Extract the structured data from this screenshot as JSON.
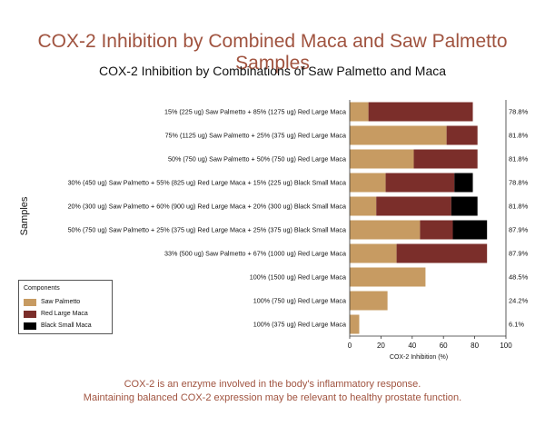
{
  "header": {
    "main_title": "COX-2 Inhibition by Combined Maca and Saw Palmetto Samples"
  },
  "footer": {
    "line1": "COX-2 is an enzyme involved in the body's inflammatory response.",
    "line2": "Maintaining balanced COX-2 expression may be relevant to healthy prostate function."
  },
  "legend": {
    "title": "Components",
    "items": [
      {
        "label": "Saw Palmetto",
        "color": "#c79b62"
      },
      {
        "label": "Red Large Maca",
        "color": "#7b2e2a"
      },
      {
        "label": "Black Small Maca",
        "color": "#000000"
      }
    ]
  },
  "chart_data": {
    "type": "bar",
    "orientation": "horizontal",
    "stacked": true,
    "title": "COX-2 Inhibition by Combinations of Saw Palmetto and Maca",
    "xlabel": "COX-2 Inhibition (%)",
    "ylabel": "Samples",
    "xlim": [
      0,
      100
    ],
    "xticks": [
      "0",
      "20",
      "40",
      "60",
      "80",
      "100"
    ],
    "grid": false,
    "legend_position": "bottom-left",
    "categories": [
      "15% (225 ug) Saw Palmetto + 85% (1275 ug) Red Large Maca",
      "75% (1125 ug) Saw Palmetto + 25% (375 ug) Red Large Maca",
      "50% (750 ug) Saw Palmetto + 50% (750 ug) Red Large Maca",
      "30% (450 ug) Saw Palmetto + 55% (825 ug) Red Large Maca + 15% (225 ug) Black Small Maca",
      "20% (300 ug) Saw Palmetto + 60% (900 ug) Red Large Maca + 20% (300 ug) Black Small Maca",
      "50% (750 ug) Saw Palmetto + 25% (375 ug) Red Large Maca + 25% (375 ug) Black Small Maca",
      "33% (500 ug) Saw Palmetto + 67% (1000 ug) Red Large Maca",
      "100% (1500 ug) Red Large Maca",
      "100% (750 ug) Red Large Maca",
      "100% (375 ug) Red Large Maca"
    ],
    "series": [
      {
        "name": "Saw Palmetto",
        "color": "#c79b62",
        "values": [
          12,
          62,
          41,
          23,
          17,
          45,
          30,
          48.5,
          24.2,
          6.1
        ]
      },
      {
        "name": "Red Large Maca",
        "color": "#7b2e2a",
        "values": [
          66.8,
          19.8,
          40.8,
          44,
          48,
          21,
          57.9,
          0,
          0,
          0
        ]
      },
      {
        "name": "Black Small Maca",
        "color": "#000000",
        "values": [
          0,
          0,
          0,
          11.8,
          16.8,
          21.9,
          0,
          0,
          0,
          0
        ]
      }
    ],
    "value_labels": [
      "78.8%",
      "81.8%",
      "81.8%",
      "78.8%",
      "81.8%",
      "87.9%",
      "87.9%",
      "48.5%",
      "24.2%",
      "6.1%"
    ]
  }
}
